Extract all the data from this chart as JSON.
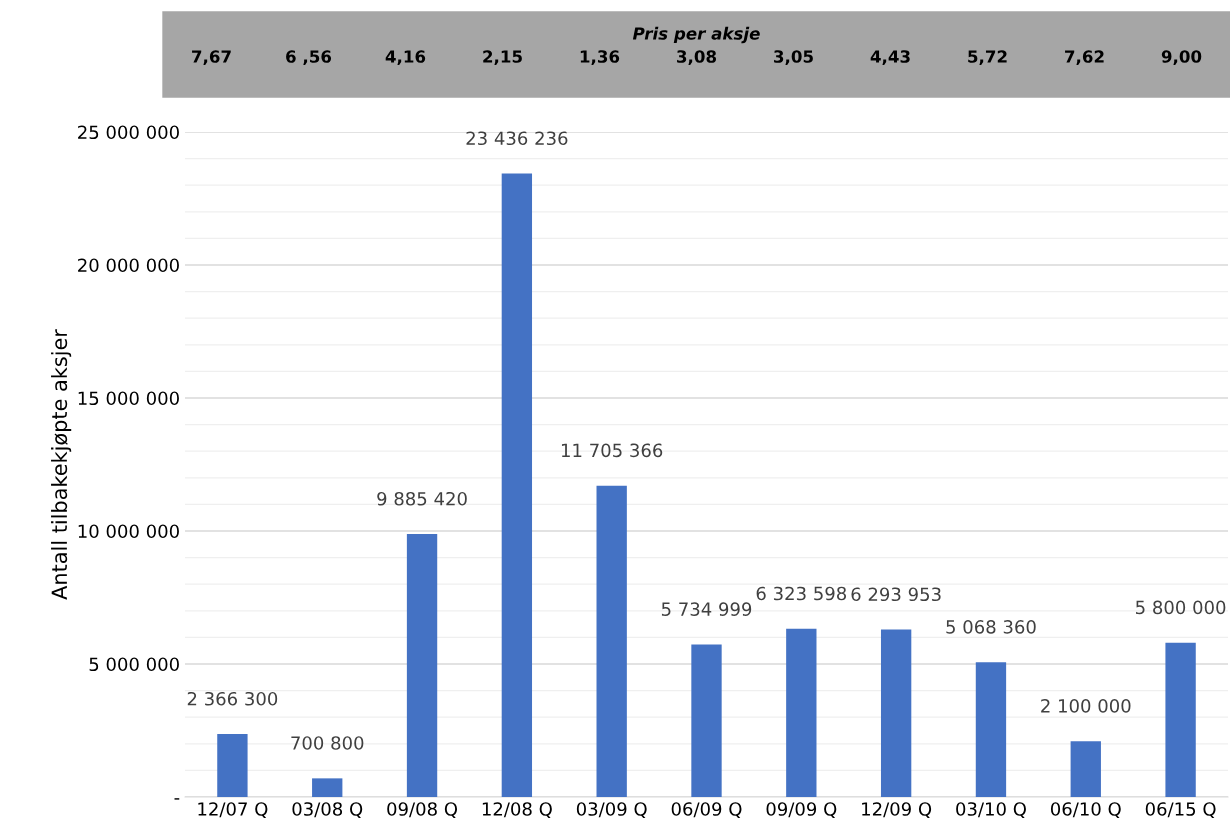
{
  "chart_data": {
    "type": "bar",
    "title": "Pris per aksje",
    "annotations": [
      "7,67",
      "6 ,56",
      "4,16",
      "2,15",
      "1,36",
      "3,08",
      "3,05",
      "4,43",
      "5,72",
      "7,62",
      "9,00"
    ],
    "ylabel": "Antall tilbakekjøpte aksjer",
    "categories": [
      "12/07 Q",
      "03/08 Q",
      "09/08 Q",
      "12/08 Q",
      "03/09 Q",
      "06/09 Q",
      "09/09 Q",
      "12/09 Q",
      "03/10 Q",
      "06/10 Q",
      "06/15 Q"
    ],
    "values": [
      2366300,
      700800,
      9885420,
      23436236,
      11705366,
      5734999,
      6323598,
      6293953,
      5068360,
      2100000,
      5800000
    ],
    "value_labels": [
      "2 366 300",
      "700 800",
      "9 885 420",
      "23 436 236",
      "11 705 366",
      "5 734 999",
      "6 323 598",
      "6 293 953",
      "5 068 360",
      "2 100 000",
      "5 800 000"
    ],
    "color": "#4472c4",
    "ylim": [
      0,
      25000000
    ],
    "yticks": [
      {
        "value": 0,
        "label": "-"
      },
      {
        "value": 1000000,
        "label": null
      },
      {
        "value": 2000000,
        "label": null
      },
      {
        "value": 3000000,
        "label": null
      },
      {
        "value": 4000000,
        "label": null
      },
      {
        "value": 5000000,
        "label": "5 000 000"
      },
      {
        "value": 6000000,
        "label": null
      },
      {
        "value": 7000000,
        "label": null
      },
      {
        "value": 8000000,
        "label": null
      },
      {
        "value": 9000000,
        "label": null
      },
      {
        "value": 10000000,
        "label": "10 000 000"
      },
      {
        "value": 11000000,
        "label": null
      },
      {
        "value": 12000000,
        "label": null
      },
      {
        "value": 13000000,
        "label": null
      },
      {
        "value": 14000000,
        "label": null
      },
      {
        "value": 15000000,
        "label": "15 000 000"
      },
      {
        "value": 16000000,
        "label": null
      },
      {
        "value": 17000000,
        "label": null
      },
      {
        "value": 18000000,
        "label": null
      },
      {
        "value": 19000000,
        "label": null
      },
      {
        "value": 20000000,
        "label": "20 000 000"
      },
      {
        "value": 21000000,
        "label": null
      },
      {
        "value": 22000000,
        "label": null
      },
      {
        "value": 23000000,
        "label": null
      },
      {
        "value": 24000000,
        "label": null
      },
      {
        "value": 25000000,
        "label": "25 000 000"
      }
    ],
    "grid": "y"
  }
}
